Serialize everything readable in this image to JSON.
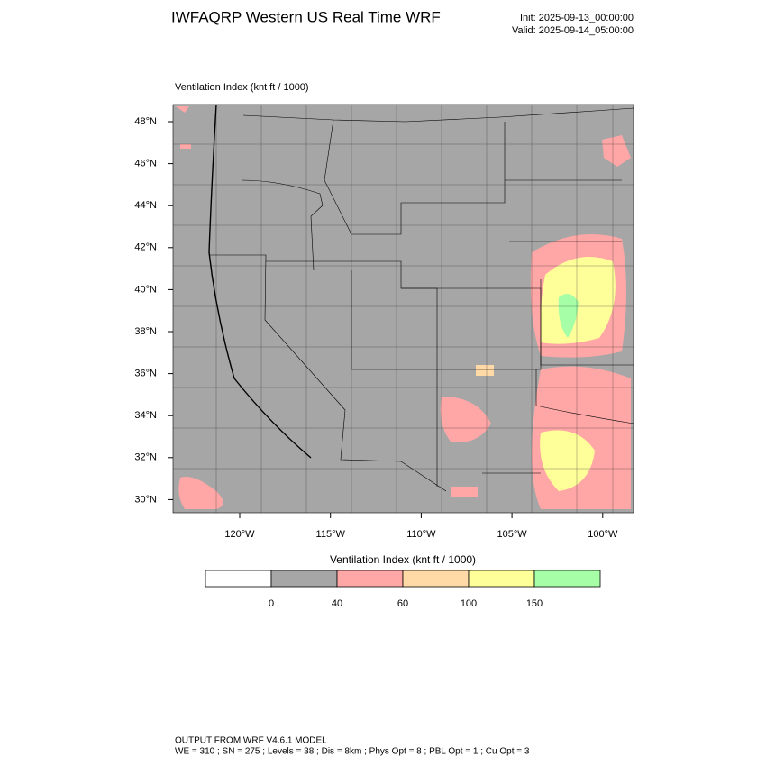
{
  "header": {
    "title": "IWFAQRP Western US Real Time WRF",
    "init": "Init: 2025-09-13_00:00:00",
    "valid": "Valid: 2025-09-14_05:00:00"
  },
  "map": {
    "label": "Ventilation Index   (knt ft / 1000)",
    "lat_labels": [
      "48°N",
      "46°N",
      "44°N",
      "42°N",
      "40°N",
      "38°N",
      "36°N",
      "34°N",
      "32°N",
      "30°N"
    ],
    "lon_labels": [
      "120°W",
      "115°W",
      "110°W",
      "105°W",
      "100°W"
    ]
  },
  "legend": {
    "title": "Ventilation Index  (knt ft / 1000)",
    "ticks": [
      0,
      40,
      60,
      100,
      150
    ],
    "colors": [
      "#ffffff",
      "#a6a6a6",
      "#ffa6a6",
      "#ffd9a6",
      "#ffff99",
      "#a6ffa6"
    ]
  },
  "footer": {
    "line1": "OUTPUT FROM WRF V4.6.1 MODEL",
    "line2": "WE = 310 ; SN = 275 ; Levels = 38 ; Dis = 8km ; Phys Opt = 8 ; PBL Opt = 1 ; Cu Opt = 3"
  }
}
